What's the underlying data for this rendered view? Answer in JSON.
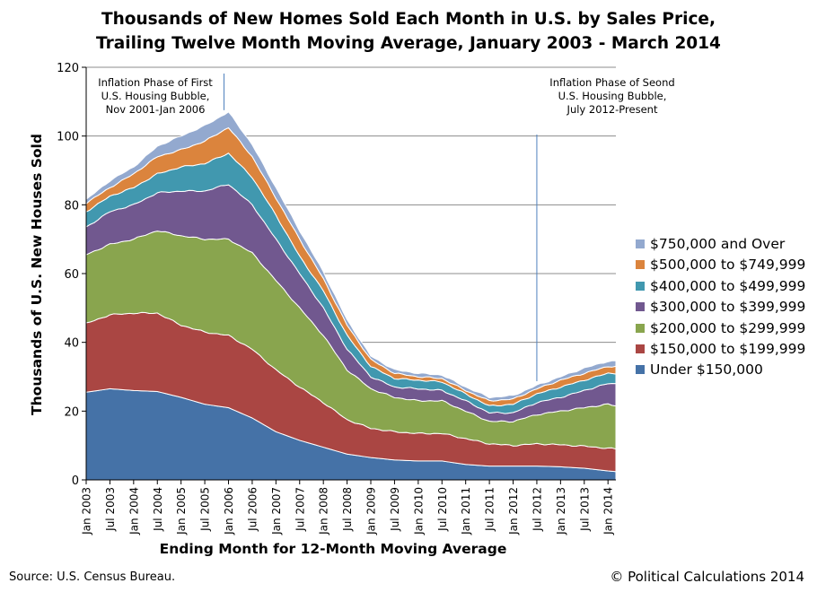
{
  "chart_data": {
    "type": "area",
    "stacked": true,
    "title": [
      "Thousands of New Homes Sold Each Month in U.S. by Sales Price,",
      "Trailing Twelve Month Moving Average, January 2003 - March 2014"
    ],
    "xlabel": "Ending Month for 12-Month Moving Average",
    "ylabel": "Thousands of U.S. New Houses Sold",
    "ylim": [
      0,
      120
    ],
    "yticks": [
      0,
      20,
      40,
      60,
      80,
      100,
      120
    ],
    "grid": true,
    "legend_position": "right",
    "x_period_months": [
      0,
      134
    ],
    "x_start": "Jan 2003",
    "x_end": "Mar 2014",
    "xtick_labels": [
      "Jan 2003",
      "Jul 2003",
      "Jan 2004",
      "Jul 2004",
      "Jan 2005",
      "Jul 2005",
      "Jan 2006",
      "Jul 2006",
      "Jan 2007",
      "Jul 2007",
      "Jan 2008",
      "Jul 2008",
      "Jan 2009",
      "Jul 2009",
      "Jan 2010",
      "Jul 2010",
      "Jan 2011",
      "Jul 2011",
      "Jan 2012",
      "Jul 2012",
      "Jan 2013",
      "Jul 2013",
      "Jan 2014"
    ],
    "series": [
      {
        "name": "Under $150,000",
        "color": "#4572a7",
        "points": [
          [
            0,
            25.5
          ],
          [
            6,
            26.5
          ],
          [
            12,
            26
          ],
          [
            18,
            25.7
          ],
          [
            24,
            24
          ],
          [
            30,
            22
          ],
          [
            36,
            21
          ],
          [
            42,
            18
          ],
          [
            48,
            14
          ],
          [
            54,
            11.5
          ],
          [
            60,
            9.5
          ],
          [
            66,
            7.5
          ],
          [
            72,
            6.5
          ],
          [
            78,
            5.8
          ],
          [
            84,
            5.5
          ],
          [
            90,
            5.5
          ],
          [
            96,
            4.5
          ],
          [
            102,
            4
          ],
          [
            108,
            4
          ],
          [
            114,
            4
          ],
          [
            120,
            3.8
          ],
          [
            126,
            3.4
          ],
          [
            132,
            2.6
          ],
          [
            134,
            2.4
          ]
        ]
      },
      {
        "name": "$150,000 to $199,999",
        "color": "#aa4643",
        "points": [
          [
            0,
            45.5
          ],
          [
            6,
            48
          ],
          [
            12,
            48.5
          ],
          [
            18,
            48.5
          ],
          [
            24,
            45
          ],
          [
            30,
            43
          ],
          [
            36,
            42
          ],
          [
            42,
            38
          ],
          [
            48,
            32
          ],
          [
            54,
            27
          ],
          [
            60,
            22.5
          ],
          [
            66,
            17.5
          ],
          [
            72,
            15
          ],
          [
            78,
            14
          ],
          [
            84,
            13.5
          ],
          [
            90,
            13.5
          ],
          [
            96,
            12
          ],
          [
            102,
            10.5
          ],
          [
            108,
            10
          ],
          [
            114,
            10.5
          ],
          [
            120,
            10.2
          ],
          [
            126,
            9.8
          ],
          [
            132,
            9.2
          ],
          [
            134,
            9.0
          ]
        ]
      },
      {
        "name": "$200,000 to $299,999",
        "color": "#89a54e",
        "points": [
          [
            0,
            65.5
          ],
          [
            6,
            68.5
          ],
          [
            12,
            70
          ],
          [
            18,
            72.5
          ],
          [
            24,
            71
          ],
          [
            30,
            70
          ],
          [
            36,
            70
          ],
          [
            42,
            66
          ],
          [
            48,
            58
          ],
          [
            54,
            50
          ],
          [
            60,
            42
          ],
          [
            66,
            32
          ],
          [
            72,
            26.5
          ],
          [
            78,
            24
          ],
          [
            84,
            23
          ],
          [
            90,
            23
          ],
          [
            96,
            20
          ],
          [
            102,
            17
          ],
          [
            108,
            17
          ],
          [
            114,
            19
          ],
          [
            120,
            20
          ],
          [
            126,
            21
          ],
          [
            132,
            22
          ],
          [
            134,
            21.5
          ]
        ]
      },
      {
        "name": "$300,000 to $399,999",
        "color": "#71588f",
        "points": [
          [
            0,
            73.5
          ],
          [
            6,
            78
          ],
          [
            12,
            80
          ],
          [
            18,
            83.5
          ],
          [
            24,
            84
          ],
          [
            30,
            84
          ],
          [
            36,
            86
          ],
          [
            42,
            80
          ],
          [
            48,
            70
          ],
          [
            54,
            60
          ],
          [
            60,
            50
          ],
          [
            66,
            38
          ],
          [
            72,
            30
          ],
          [
            78,
            27
          ],
          [
            84,
            26.5
          ],
          [
            90,
            26
          ],
          [
            96,
            23
          ],
          [
            102,
            19.5
          ],
          [
            108,
            19.5
          ],
          [
            114,
            22.5
          ],
          [
            120,
            24
          ],
          [
            126,
            26
          ],
          [
            132,
            28
          ],
          [
            134,
            28
          ]
        ]
      },
      {
        "name": "$400,000 to $499,999",
        "color": "#4198af",
        "points": [
          [
            0,
            78
          ],
          [
            6,
            82.5
          ],
          [
            12,
            85
          ],
          [
            18,
            89
          ],
          [
            24,
            91
          ],
          [
            30,
            92
          ],
          [
            36,
            95
          ],
          [
            42,
            88
          ],
          [
            48,
            77
          ],
          [
            54,
            65
          ],
          [
            60,
            55
          ],
          [
            66,
            42
          ],
          [
            72,
            33
          ],
          [
            78,
            29.5
          ],
          [
            84,
            29
          ],
          [
            90,
            28.5
          ],
          [
            96,
            25
          ],
          [
            102,
            21.5
          ],
          [
            108,
            22
          ],
          [
            114,
            25
          ],
          [
            120,
            27
          ],
          [
            126,
            29
          ],
          [
            132,
            31
          ],
          [
            134,
            31
          ]
        ]
      },
      {
        "name": "$500,000 to $749,999",
        "color": "#db843d",
        "points": [
          [
            0,
            80.5
          ],
          [
            6,
            85
          ],
          [
            12,
            89
          ],
          [
            18,
            94
          ],
          [
            24,
            96
          ],
          [
            30,
            98.5
          ],
          [
            36,
            102.5
          ],
          [
            42,
            94
          ],
          [
            48,
            82
          ],
          [
            54,
            70
          ],
          [
            60,
            58.5
          ],
          [
            66,
            45
          ],
          [
            72,
            35
          ],
          [
            78,
            31
          ],
          [
            84,
            30
          ],
          [
            90,
            29.5
          ],
          [
            96,
            26
          ],
          [
            102,
            23
          ],
          [
            108,
            23.5
          ],
          [
            114,
            26.5
          ],
          [
            120,
            29
          ],
          [
            126,
            31
          ],
          [
            132,
            33
          ],
          [
            134,
            33
          ]
        ]
      },
      {
        "name": "$750,000 and Over",
        "color": "#93a9cf",
        "points": [
          [
            0,
            81.5
          ],
          [
            6,
            87
          ],
          [
            12,
            91
          ],
          [
            18,
            97
          ],
          [
            24,
            100
          ],
          [
            30,
            103
          ],
          [
            36,
            107
          ],
          [
            42,
            97.5
          ],
          [
            48,
            85
          ],
          [
            54,
            72.5
          ],
          [
            60,
            60.5
          ],
          [
            66,
            46.5
          ],
          [
            72,
            36
          ],
          [
            78,
            32
          ],
          [
            84,
            31
          ],
          [
            90,
            30.5
          ],
          [
            96,
            27
          ],
          [
            102,
            24
          ],
          [
            108,
            24.5
          ],
          [
            114,
            27.5
          ],
          [
            120,
            30
          ],
          [
            126,
            32.5
          ],
          [
            132,
            34.5
          ],
          [
            134,
            34.5
          ]
        ]
      }
    ],
    "annotations": [
      {
        "text": [
          "Inflation Phase of First",
          "U.S. Housing Bubble,",
          "Nov 2001-Jan 2006"
        ],
        "x_month": 36
      },
      {
        "text": [
          "Inflation Phase of Seond",
          "U.S. Housing Bubble,",
          "July 2012-Present"
        ],
        "x_month": 114
      }
    ]
  },
  "footer": {
    "source": "Source:  U.S. Census Bureau.",
    "copyright": "© Political Calculations 2014"
  }
}
